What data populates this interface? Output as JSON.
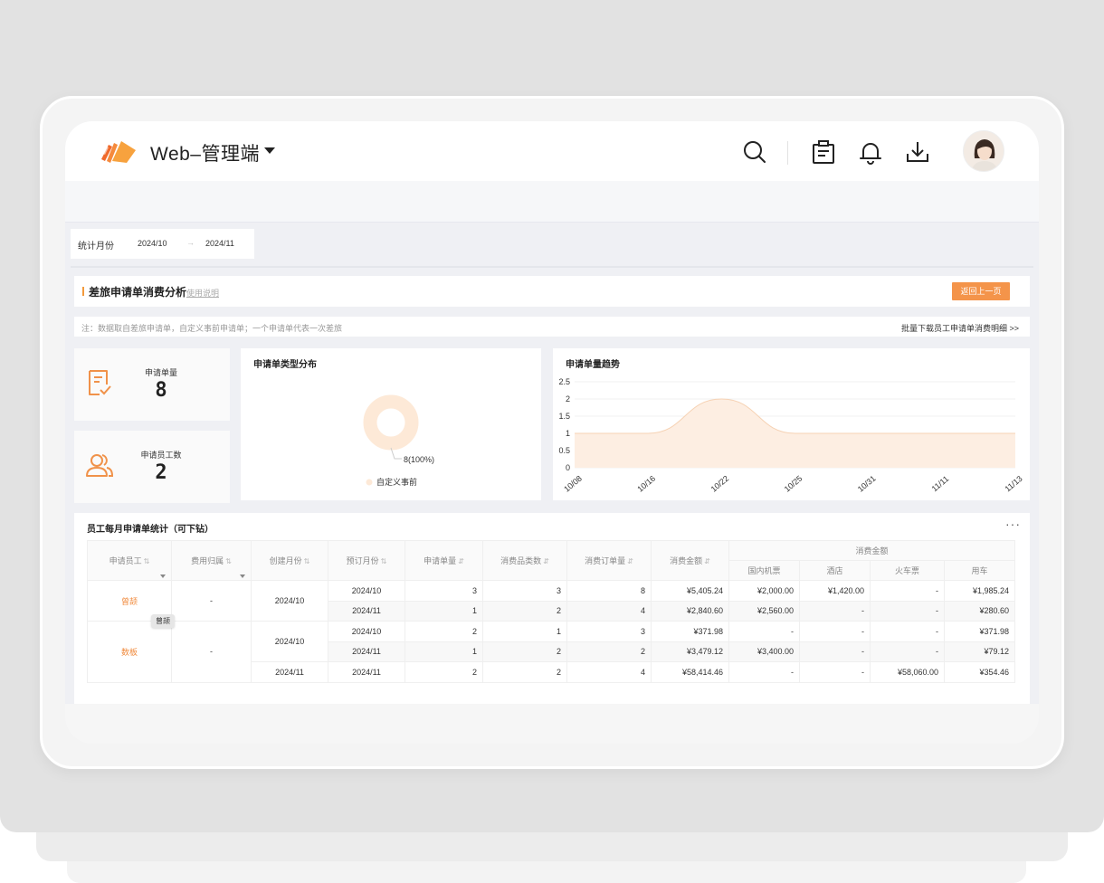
{
  "app": {
    "title": "Web–管理端"
  },
  "header_icons": [
    "search-icon",
    "clipboard-icon",
    "bell-icon",
    "download-icon"
  ],
  "filter": {
    "label": "统计月份",
    "start": "2024/10",
    "arrow": "→",
    "end": "2024/11"
  },
  "section": {
    "title": "差旅申请单消费分析",
    "help": "使用说明",
    "back_button": "返回上一页"
  },
  "note": {
    "text": "注：数据取自差旅申请单，自定义事前申请单；一个申请单代表一次差旅",
    "download_link": "批量下载员工申请单消费明细 >>"
  },
  "stats": [
    {
      "label": "申请单量",
      "value": "8"
    },
    {
      "label": "申请员工数",
      "value": "2"
    }
  ],
  "donut": {
    "title": "申请单类型分布",
    "label": "8(100%)",
    "legend": "自定义事前",
    "color": "#fde9d7"
  },
  "chart_data": {
    "type": "area",
    "title": "申请单量趋势",
    "x": [
      "10/08",
      "10/16",
      "10/22",
      "10/25",
      "10/31",
      "11/11",
      "11/13"
    ],
    "values": [
      1,
      1,
      2,
      1,
      1,
      1,
      1
    ],
    "ylim": [
      0,
      2.5
    ],
    "yticks": [
      "2.5",
      "2",
      "1.5",
      "1",
      "0.5",
      "0"
    ],
    "grid": true,
    "fill_color": "#fdeee2",
    "line_color": "#f6d2b4"
  },
  "table": {
    "title": "员工每月申请单统计（可下钻）",
    "more": "···",
    "headers": {
      "employee": "申请员工",
      "cost_owner": "费用归属",
      "create_month": "创建月份",
      "book_month": "预订月份",
      "app_count": "申请单量",
      "category_count": "消费品类数",
      "order_count": "消费订单量",
      "amount": "消费金额",
      "amount_group": "消费金额",
      "flight": "国内机票",
      "hotel": "酒店",
      "train": "火车票",
      "car": "用车"
    },
    "tooltip": "曾颉",
    "rows": [
      {
        "employee": "曾颉",
        "cost_owner": "-",
        "create_month": "2024/10",
        "book_month": "2024/10",
        "app_count": "3",
        "category_count": "3",
        "order_count": "8",
        "amount": "¥5,405.24",
        "flight": "¥2,000.00",
        "hotel": "¥1,420.00",
        "train": "-",
        "car": "¥1,985.24"
      },
      {
        "book_month": "2024/11",
        "app_count": "1",
        "category_count": "2",
        "order_count": "4",
        "amount": "¥2,840.60",
        "flight": "¥2,560.00",
        "hotel": "-",
        "train": "-",
        "car": "¥280.60"
      },
      {
        "employee": "数板",
        "cost_owner": "-",
        "create_month": "2024/10",
        "book_month": "2024/10",
        "app_count": "2",
        "category_count": "1",
        "order_count": "3",
        "amount": "¥371.98",
        "flight": "-",
        "hotel": "-",
        "train": "-",
        "car": "¥371.98"
      },
      {
        "book_month": "2024/11",
        "app_count": "1",
        "category_count": "2",
        "order_count": "2",
        "amount": "¥3,479.12",
        "flight": "¥3,400.00",
        "hotel": "-",
        "train": "-",
        "car": "¥79.12"
      },
      {
        "create_month": "2024/11",
        "book_month": "2024/11",
        "app_count": "2",
        "category_count": "2",
        "order_count": "4",
        "amount": "¥58,414.46",
        "flight": "-",
        "hotel": "-",
        "train": "¥58,060.00",
        "car": "¥354.46"
      }
    ]
  },
  "colors": {
    "accent": "#f4944a",
    "name_link": "#f08a3c"
  }
}
